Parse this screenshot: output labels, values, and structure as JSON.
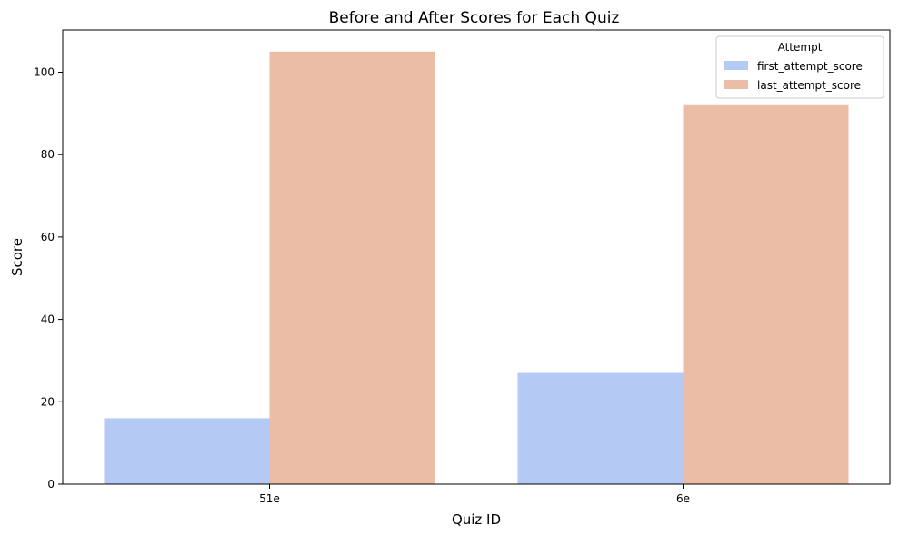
{
  "chart_data": {
    "type": "bar",
    "title": "Before and After Scores for Each Quiz",
    "xlabel": "Quiz ID",
    "ylabel": "Score",
    "categories": [
      "51e",
      "6e"
    ],
    "series": [
      {
        "name": "first_attempt_score",
        "values": [
          16,
          27
        ],
        "color": "#b4c9f3"
      },
      {
        "name": "last_attempt_score",
        "values": [
          105,
          92
        ],
        "color": "#ebbda7"
      }
    ],
    "ylim": [
      0,
      110.25
    ],
    "yticks": [
      0,
      20,
      40,
      60,
      80,
      100
    ],
    "grid": false,
    "legend": {
      "title": "Attempt",
      "position": "top-right"
    }
  }
}
